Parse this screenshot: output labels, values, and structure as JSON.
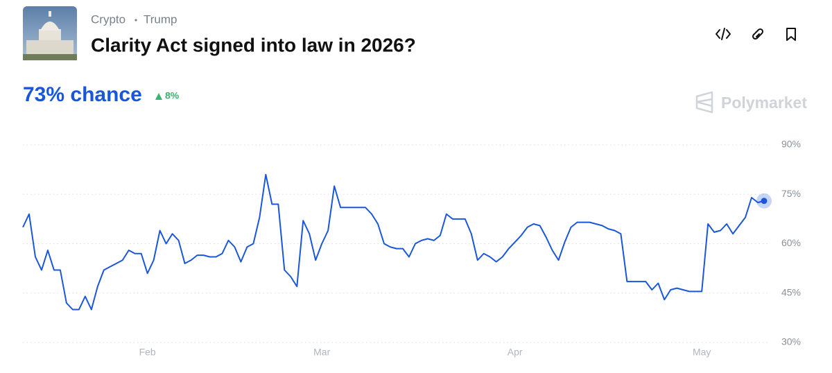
{
  "header": {
    "tags": [
      "Crypto",
      "Trump"
    ],
    "title": "Clarity Act signed into law in 2026?"
  },
  "chance": "73% chance",
  "change": "8%",
  "brand": "Polymarket",
  "chart_data": {
    "type": "line",
    "categories": [
      null,
      null,
      null,
      null,
      null,
      null,
      null,
      null,
      null,
      null,
      null,
      null,
      null,
      null,
      null,
      null,
      null,
      null,
      null,
      null,
      "Feb",
      null,
      null,
      null,
      null,
      null,
      null,
      null,
      null,
      null,
      null,
      null,
      null,
      null,
      null,
      null,
      null,
      null,
      null,
      null,
      null,
      null,
      null,
      null,
      null,
      null,
      null,
      null,
      "Mar",
      null,
      null,
      null,
      null,
      null,
      null,
      null,
      null,
      null,
      null,
      null,
      null,
      null,
      null,
      null,
      null,
      null,
      null,
      null,
      null,
      null,
      null,
      null,
      null,
      null,
      null,
      null,
      null,
      null,
      null,
      "Apr",
      null,
      null,
      null,
      null,
      null,
      null,
      null,
      null,
      null,
      null,
      null,
      null,
      null,
      null,
      null,
      null,
      null,
      null,
      null,
      null,
      null,
      null,
      null,
      null,
      null,
      null,
      null,
      null,
      null,
      "May",
      null,
      null,
      null,
      null,
      null,
      null,
      null,
      null,
      null,
      null
    ],
    "series": [
      {
        "color": "#1a56db",
        "values": [
          65,
          69,
          56,
          52,
          58,
          52,
          52,
          42,
          40,
          40,
          44,
          40,
          47,
          52,
          53,
          54,
          55,
          58,
          57,
          57,
          51,
          55,
          64,
          60,
          63,
          61,
          54,
          55,
          56.5,
          56.5,
          56,
          56,
          57,
          61,
          59,
          54.5,
          59,
          60,
          68,
          81,
          72,
          72,
          52,
          50,
          47,
          67,
          63,
          55,
          60,
          64,
          77.5,
          71,
          71,
          71,
          71,
          71,
          69,
          66,
          60,
          59,
          58.5,
          58.5,
          56,
          60,
          61,
          61.5,
          61,
          62.5,
          69,
          67.5,
          67.5,
          67.5,
          63,
          55,
          57,
          56,
          54.5,
          56,
          58.5,
          60.5,
          62.5,
          65,
          66,
          65.5,
          62,
          58,
          55,
          60.5,
          65,
          66.5,
          66.5,
          66.5,
          66,
          65.5,
          64.5,
          64,
          63,
          48.5,
          48.5,
          48.5,
          48.5,
          46,
          48,
          43,
          46,
          46.5,
          46,
          45.5,
          45.5,
          45.5,
          66,
          63.5,
          64,
          66,
          63,
          65.5,
          68,
          74,
          72.5,
          73
        ]
      }
    ],
    "ylim": [
      30,
      90
    ],
    "yticks": [
      {
        "value": 30,
        "label": "30%"
      },
      {
        "value": 45,
        "label": "45%"
      },
      {
        "value": 60,
        "label": "60%"
      },
      {
        "value": 75,
        "label": "75%"
      },
      {
        "value": 90,
        "label": "90%"
      }
    ],
    "grid": true
  }
}
